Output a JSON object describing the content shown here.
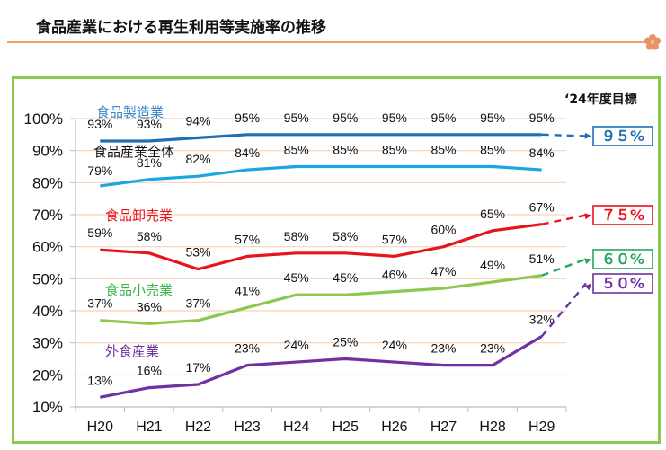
{
  "page": {
    "title": "食品産業における再生利用等実施率の推移",
    "goal_header": "‘24年度目標"
  },
  "chart_data": {
    "type": "line",
    "title": "食品産業における再生利用等実施率の推移",
    "xlabel": "",
    "ylabel": "",
    "categories": [
      "H20",
      "H21",
      "H22",
      "H23",
      "H24",
      "H25",
      "H26",
      "H27",
      "H28",
      "H29"
    ],
    "y_ticks": [
      "10%",
      "20%",
      "30%",
      "40%",
      "50%",
      "60%",
      "70%",
      "80%",
      "90%",
      "100%"
    ],
    "ylim": [
      10,
      100
    ],
    "grid": true,
    "series": [
      {
        "name": "食品製造業",
        "color": "#1f6fb8",
        "label_color": "#3a86c8",
        "values": [
          93,
          93,
          94,
          95,
          95,
          95,
          95,
          95,
          95,
          95
        ],
        "target": 95,
        "target_label": "９５%"
      },
      {
        "name": "食品産業全体",
        "color": "#1aa6e0",
        "label_color": "#111111",
        "values": [
          79,
          81,
          82,
          84,
          85,
          85,
          85,
          85,
          85,
          84
        ],
        "target": null,
        "target_label": null
      },
      {
        "name": "食品卸売業",
        "color": "#e8141c",
        "label_color": "#e8141c",
        "values": [
          59,
          58,
          53,
          57,
          58,
          58,
          57,
          60,
          65,
          67
        ],
        "target": 75,
        "target_label": "７５%"
      },
      {
        "name": "食品小売業",
        "color": "#8cc84b",
        "label_color": "#3cb44a",
        "target_color": "#1faa5a",
        "values": [
          37,
          36,
          37,
          41,
          45,
          45,
          46,
          47,
          49,
          51
        ],
        "target": 60,
        "target_label": "６０%"
      },
      {
        "name": "外食産業",
        "color": "#7030a0",
        "label_color": "#7030a0",
        "values": [
          13,
          16,
          17,
          23,
          24,
          25,
          24,
          23,
          23,
          32
        ],
        "target": 50,
        "target_label": "５０%"
      }
    ],
    "target_year_label": "‘24年度目標"
  }
}
